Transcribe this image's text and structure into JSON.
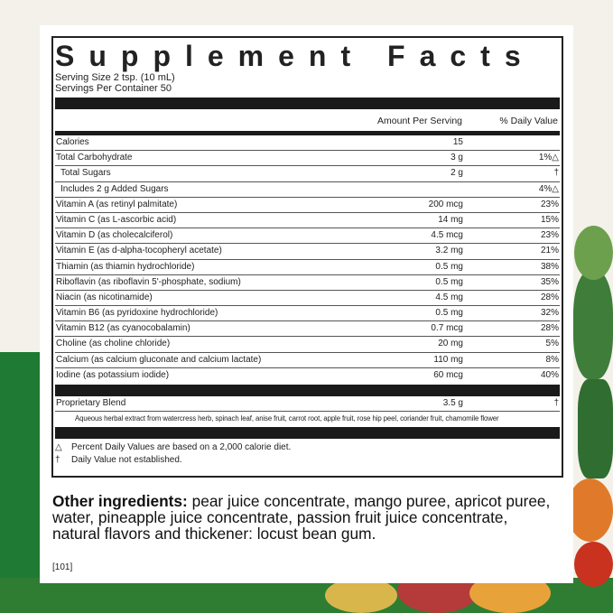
{
  "title": "Supplement Facts",
  "serving_size": "Serving Size 2 tsp. (10 mL)",
  "servings_per_container": "Servings Per Container 50",
  "headers": {
    "amount": "Amount Per Serving",
    "dv": "% Daily Value"
  },
  "rows": [
    {
      "name": "Calories",
      "amount": "15",
      "dv": ""
    },
    {
      "name": "Total Carbohydrate",
      "amount": "3 g",
      "dv": "1%△"
    },
    {
      "name": "Total Sugars",
      "amount": "2 g",
      "dv": "†"
    },
    {
      "name": "Includes 2 g Added Sugars",
      "amount": "",
      "dv": "4%△"
    },
    {
      "name": "Vitamin A (as retinyl palmitate)",
      "amount": "200 mcg",
      "dv": "23%"
    },
    {
      "name": "Vitamin C (as L-ascorbic acid)",
      "amount": "14 mg",
      "dv": "15%"
    },
    {
      "name": "Vitamin D (as cholecalciferol)",
      "amount": "4.5 mcg",
      "dv": "23%"
    },
    {
      "name": "Vitamin E (as d-alpha-tocopheryl acetate)",
      "amount": "3.2 mg",
      "dv": "21%"
    },
    {
      "name": "Thiamin (as thiamin hydrochloride)",
      "amount": "0.5 mg",
      "dv": "38%"
    },
    {
      "name": "Riboflavin (as riboflavin 5'-phosphate, sodium)",
      "amount": "0.5 mg",
      "dv": "35%"
    },
    {
      "name": "Niacin (as nicotinamide)",
      "amount": "4.5 mg",
      "dv": "28%"
    },
    {
      "name": "Vitamin B6 (as pyridoxine hydrochloride)",
      "amount": "0.5 mg",
      "dv": "32%"
    },
    {
      "name": "Vitamin B12 (as cyanocobalamin)",
      "amount": "0.7 mcg",
      "dv": "28%"
    },
    {
      "name": "Choline (as choline chloride)",
      "amount": "20 mg",
      "dv": "5%"
    },
    {
      "name": "Calcium (as calcium gluconate and calcium lactate)",
      "amount": "110 mg",
      "dv": "8%"
    },
    {
      "name": "Iodine (as potassium iodide)",
      "amount": "60 mcg",
      "dv": "40%"
    }
  ],
  "blend": {
    "name": "Proprietary Blend",
    "amount": "3.5 g",
    "dv": "†",
    "detail": "Aqueous herbal extract from watercress herb, spinach leaf, anise fruit, carrot root, apple fruit, rose hip peel, coriander fruit, chamomile flower"
  },
  "footnotes": [
    {
      "symbol": "△",
      "text": "Percent Daily Values are based on a 2,000 calorie diet."
    },
    {
      "symbol": "†",
      "text": "Daily Value not established."
    }
  ],
  "other_ingredients": {
    "label": "Other ingredients:",
    "text": " pear juice concentrate, mango puree, apricot puree, water, pineapple juice concentrate, passion fruit juice concentrate, natural flavors and thickener: locust bean gum."
  },
  "code": "[101]"
}
